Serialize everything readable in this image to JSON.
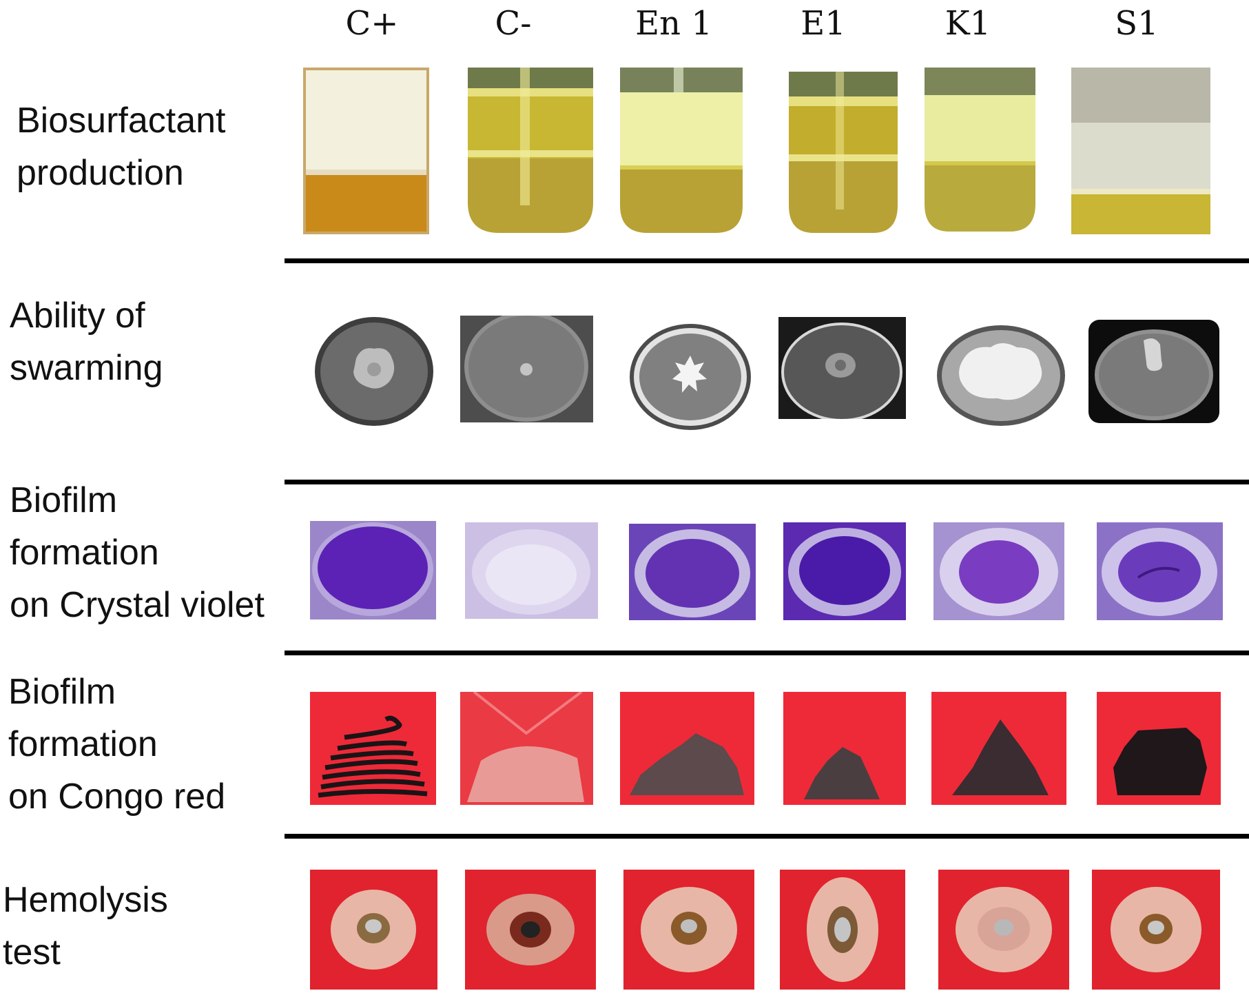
{
  "columns": [
    "C+",
    "C-",
    "En 1",
    "E1",
    "K1",
    "S1"
  ],
  "rows": [
    {
      "label": "Biosurfactant\nproduction",
      "test": "biosurfactant"
    },
    {
      "label": "Ability of\nswarming",
      "test": "swarming"
    },
    {
      "label": "Biofilm\nformation\non Crystal violet",
      "test": "crystal-violet"
    },
    {
      "label": "Biofilm\nformation\non Congo red",
      "test": "congo-red"
    },
    {
      "label": "Hemolysis\ntest",
      "test": "hemolysis"
    }
  ],
  "colors": {
    "foam_white": "#f3f0de",
    "oil_yellow": "#d9c93a",
    "amber": "#c98a1a",
    "crystal_violet": "#5b22b5",
    "congo_red": "#ee2a38",
    "streak_black": "#1a1416",
    "blood_agar": "#e0232e",
    "halo": "#e8b6a6"
  }
}
